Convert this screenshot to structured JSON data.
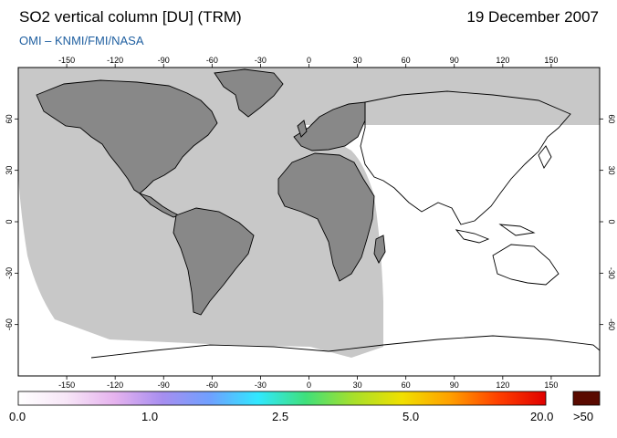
{
  "header": {
    "title": "SO2 vertical column [DU] (TRM)",
    "date": "19 December 2007",
    "credit": "OMI  –  KNMI/FMI/NASA"
  },
  "axes": {
    "lon_ticks": [
      "-150",
      "-120",
      "-90",
      "-60",
      "-30",
      "0",
      "30",
      "60",
      "90",
      "120",
      "150"
    ],
    "lat_ticks": [
      "60",
      "30",
      "0",
      "-30",
      "-60"
    ]
  },
  "colorbar": {
    "labels": [
      "0.0",
      "1.0",
      "2.5",
      "5.0",
      "20.0"
    ],
    "over_label": ">50",
    "colors": [
      "#ffffff",
      "#f7e6f7",
      "#e6b3ee",
      "#a78ef0",
      "#6fa0ff",
      "#30e8ff",
      "#3fe07a",
      "#a8e02a",
      "#f0e000",
      "#ffa000",
      "#ff4000",
      "#e00000"
    ],
    "over_color": "#5a0a00"
  },
  "map": {
    "ocean_color": "#ffffff",
    "land_color": "#888888",
    "no_data_color": "#c8c8c8",
    "coast_color": "#000000"
  }
}
